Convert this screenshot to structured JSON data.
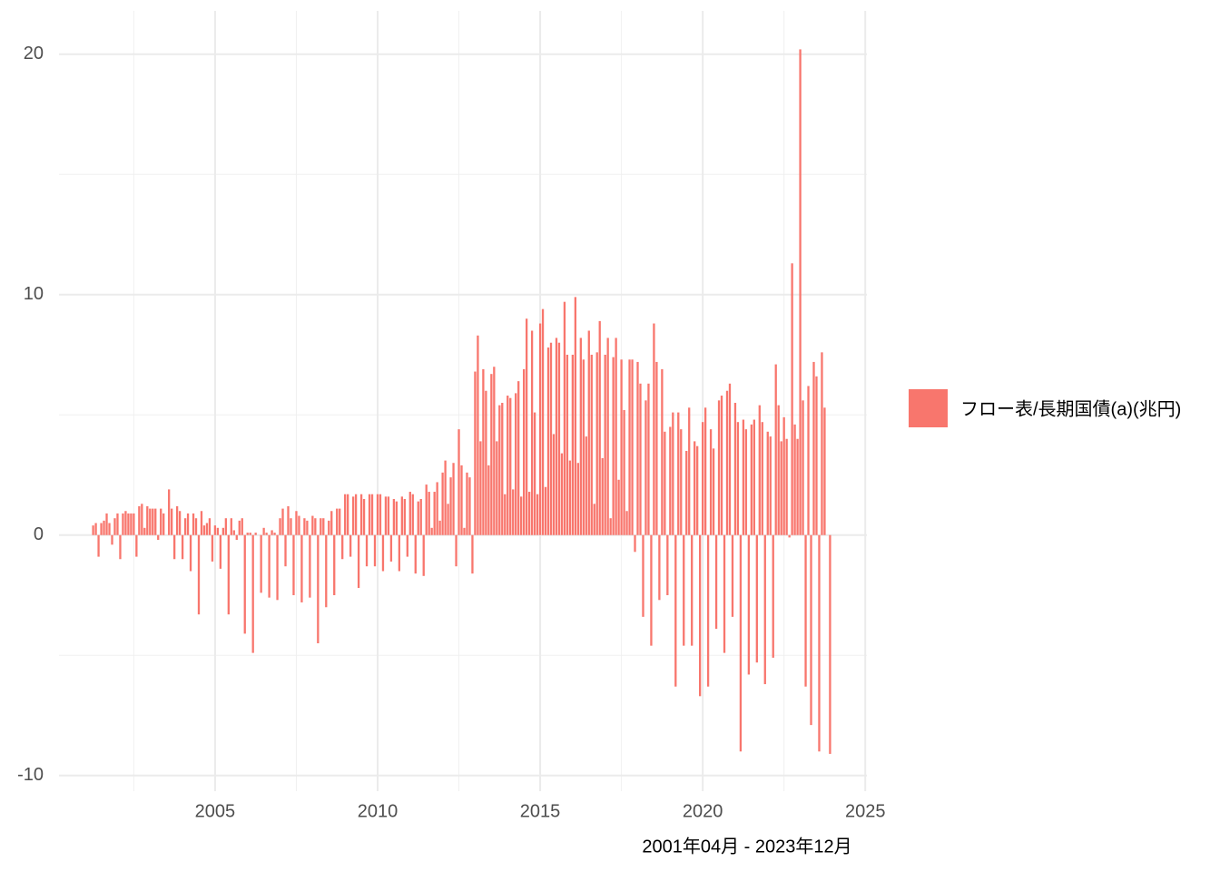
{
  "chart_data": {
    "type": "bar",
    "x_label": "2001年04月 - 2023年12月",
    "xlim": [
      2000.2,
      2025.05
    ],
    "xticks": [
      2005,
      2010,
      2015,
      2020,
      2025
    ],
    "xminor_ticks": [
      2002.5,
      2007.5,
      2012.5,
      2017.5,
      2022.5
    ],
    "ylim": [
      -10.65,
      21.8
    ],
    "yticks": [
      -10,
      0,
      10,
      20
    ],
    "yminor_ticks": [
      -5,
      5,
      15
    ],
    "grid": true,
    "legend": "right",
    "series": [
      {
        "name": "フロー表/長期国債(a)(兆円)",
        "color": "#F8766D",
        "x": [
          "2001-04",
          "2001-05",
          "2001-06",
          "2001-07",
          "2001-08",
          "2001-09",
          "2001-10",
          "2001-11",
          "2001-12",
          "2002-01",
          "2002-02",
          "2002-03",
          "2002-04",
          "2002-05",
          "2002-06",
          "2002-07",
          "2002-08",
          "2002-09",
          "2002-10",
          "2002-11",
          "2002-12",
          "2003-01",
          "2003-02",
          "2003-03",
          "2003-04",
          "2003-05",
          "2003-06",
          "2003-07",
          "2003-08",
          "2003-09",
          "2003-10",
          "2003-11",
          "2003-12",
          "2004-01",
          "2004-02",
          "2004-03",
          "2004-04",
          "2004-05",
          "2004-06",
          "2004-07",
          "2004-08",
          "2004-09",
          "2004-10",
          "2004-11",
          "2004-12",
          "2005-01",
          "2005-02",
          "2005-03",
          "2005-04",
          "2005-05",
          "2005-06",
          "2005-07",
          "2005-08",
          "2005-09",
          "2005-10",
          "2005-11",
          "2005-12",
          "2006-01",
          "2006-02",
          "2006-03",
          "2006-04",
          "2006-05",
          "2006-06",
          "2006-07",
          "2006-08",
          "2006-09",
          "2006-10",
          "2006-11",
          "2006-12",
          "2007-01",
          "2007-02",
          "2007-03",
          "2007-04",
          "2007-05",
          "2007-06",
          "2007-07",
          "2007-08",
          "2007-09",
          "2007-10",
          "2007-11",
          "2007-12",
          "2008-01",
          "2008-02",
          "2008-03",
          "2008-04",
          "2008-05",
          "2008-06",
          "2008-07",
          "2008-08",
          "2008-09",
          "2008-10",
          "2008-11",
          "2008-12",
          "2009-01",
          "2009-02",
          "2009-03",
          "2009-04",
          "2009-05",
          "2009-06",
          "2009-07",
          "2009-08",
          "2009-09",
          "2009-10",
          "2009-11",
          "2009-12",
          "2010-01",
          "2010-02",
          "2010-03",
          "2010-04",
          "2010-05",
          "2010-06",
          "2010-07",
          "2010-08",
          "2010-09",
          "2010-10",
          "2010-11",
          "2010-12",
          "2011-01",
          "2011-02",
          "2011-03",
          "2011-04",
          "2011-05",
          "2011-06",
          "2011-07",
          "2011-08",
          "2011-09",
          "2011-10",
          "2011-11",
          "2011-12",
          "2012-01",
          "2012-02",
          "2012-03",
          "2012-04",
          "2012-05",
          "2012-06",
          "2012-07",
          "2012-08",
          "2012-09",
          "2012-10",
          "2012-11",
          "2012-12",
          "2013-01",
          "2013-02",
          "2013-03",
          "2013-04",
          "2013-05",
          "2013-06",
          "2013-07",
          "2013-08",
          "2013-09",
          "2013-10",
          "2013-11",
          "2013-12",
          "2014-01",
          "2014-02",
          "2014-03",
          "2014-04",
          "2014-05",
          "2014-06",
          "2014-07",
          "2014-08",
          "2014-09",
          "2014-10",
          "2014-11",
          "2014-12",
          "2015-01",
          "2015-02",
          "2015-03",
          "2015-04",
          "2015-05",
          "2015-06",
          "2015-07",
          "2015-08",
          "2015-09",
          "2015-10",
          "2015-11",
          "2015-12",
          "2016-01",
          "2016-02",
          "2016-03",
          "2016-04",
          "2016-05",
          "2016-06",
          "2016-07",
          "2016-08",
          "2016-09",
          "2016-10",
          "2016-11",
          "2016-12",
          "2017-01",
          "2017-02",
          "2017-03",
          "2017-04",
          "2017-05",
          "2017-06",
          "2017-07",
          "2017-08",
          "2017-09",
          "2017-10",
          "2017-11",
          "2017-12",
          "2018-01",
          "2018-02",
          "2018-03",
          "2018-04",
          "2018-05",
          "2018-06",
          "2018-07",
          "2018-08",
          "2018-09",
          "2018-10",
          "2018-11",
          "2018-12",
          "2019-01",
          "2019-02",
          "2019-03",
          "2019-04",
          "2019-05",
          "2019-06",
          "2019-07",
          "2019-08",
          "2019-09",
          "2019-10",
          "2019-11",
          "2019-12",
          "2020-01",
          "2020-02",
          "2020-03",
          "2020-04",
          "2020-05",
          "2020-06",
          "2020-07",
          "2020-08",
          "2020-09",
          "2020-10",
          "2020-11",
          "2020-12",
          "2021-01",
          "2021-02",
          "2021-03",
          "2021-04",
          "2021-05",
          "2021-06",
          "2021-07",
          "2021-08",
          "2021-09",
          "2021-10",
          "2021-11",
          "2021-12",
          "2022-01",
          "2022-02",
          "2022-03",
          "2022-04",
          "2022-05",
          "2022-06",
          "2022-07",
          "2022-08",
          "2022-09",
          "2022-10",
          "2022-11",
          "2022-12",
          "2023-01",
          "2023-02",
          "2023-03",
          "2023-04",
          "2023-05",
          "2023-06",
          "2023-07",
          "2023-08",
          "2023-09",
          "2023-10",
          "2023-11",
          "2023-12"
        ],
        "values": [
          0.4,
          0.5,
          -0.9,
          0.5,
          0.6,
          0.9,
          0.5,
          -0.4,
          0.7,
          0.9,
          -1.0,
          0.9,
          1.0,
          0.9,
          0.9,
          0.9,
          -0.9,
          1.2,
          1.3,
          0.3,
          1.2,
          1.1,
          1.1,
          1.1,
          -0.2,
          1.1,
          0.9,
          0.0,
          1.9,
          1.1,
          -1.0,
          1.2,
          1.0,
          -1.0,
          0.7,
          0.9,
          -1.5,
          0.9,
          0.7,
          -3.3,
          1.0,
          0.4,
          0.5,
          0.7,
          -1.1,
          0.4,
          0.3,
          -1.4,
          0.3,
          0.7,
          -3.3,
          0.7,
          0.2,
          -0.2,
          0.6,
          0.7,
          -4.1,
          0.1,
          0.1,
          -4.9,
          0.1,
          0.0,
          -2.4,
          0.3,
          0.1,
          -2.6,
          0.2,
          0.1,
          -2.7,
          0.7,
          1.1,
          -1.3,
          1.2,
          0.7,
          -2.5,
          1.0,
          0.8,
          -2.8,
          0.7,
          0.6,
          -2.6,
          0.8,
          0.7,
          -4.5,
          0.7,
          0.7,
          -3.0,
          0.6,
          1.0,
          -2.5,
          1.1,
          1.1,
          -1.0,
          1.7,
          1.7,
          -0.9,
          1.6,
          1.7,
          -2.2,
          1.7,
          1.5,
          -1.3,
          1.7,
          1.7,
          -1.3,
          1.7,
          1.7,
          -1.5,
          1.6,
          1.6,
          -1.1,
          1.5,
          1.4,
          -1.5,
          1.6,
          1.5,
          -0.9,
          1.8,
          1.7,
          -1.6,
          1.4,
          1.5,
          -1.7,
          2.1,
          1.8,
          0.3,
          1.8,
          2.2,
          0.6,
          2.6,
          3.1,
          1.3,
          2.4,
          3.0,
          -1.3,
          4.4,
          2.9,
          0.3,
          2.6,
          2.4,
          -1.6,
          6.8,
          8.3,
          3.9,
          6.9,
          6.0,
          2.9,
          6.7,
          7.0,
          3.9,
          5.4,
          5.5,
          1.7,
          5.8,
          5.7,
          1.9,
          5.9,
          6.4,
          1.6,
          6.9,
          9.0,
          1.8,
          8.5,
          5.1,
          1.7,
          8.8,
          9.4,
          2.0,
          7.8,
          8.0,
          4.2,
          8.2,
          8.0,
          3.4,
          9.7,
          7.5,
          3.1,
          7.5,
          9.9,
          3.0,
          8.2,
          7.3,
          4.1,
          8.5,
          7.5,
          1.3,
          7.6,
          8.9,
          3.2,
          7.5,
          8.2,
          0.7,
          7.4,
          8.2,
          2.3,
          7.3,
          5.2,
          1.0,
          7.3,
          7.3,
          -0.7,
          7.2,
          6.3,
          -3.4,
          5.6,
          6.3,
          -4.6,
          8.8,
          7.2,
          -2.7,
          6.9,
          4.3,
          -2.5,
          4.5,
          5.1,
          -6.3,
          5.1,
          4.4,
          -4.6,
          3.5,
          5.3,
          -4.6,
          3.9,
          3.7,
          -6.7,
          4.7,
          5.3,
          -6.3,
          4.4,
          3.6,
          -3.9,
          5.6,
          5.8,
          -4.9,
          6.0,
          6.3,
          -3.4,
          5.5,
          4.7,
          -9.0,
          4.8,
          4.4,
          -5.8,
          4.6,
          4.8,
          -5.3,
          5.4,
          4.7,
          -6.2,
          4.3,
          4.1,
          -5.1,
          7.1,
          5.4,
          3.9,
          4.9,
          4.0,
          -0.1,
          11.3,
          4.6,
          4.0,
          20.2,
          5.6,
          -6.3,
          6.2,
          -7.9,
          7.2,
          6.6,
          -9.0,
          7.6,
          5.3,
          0.0,
          -9.1
        ]
      }
    ]
  }
}
